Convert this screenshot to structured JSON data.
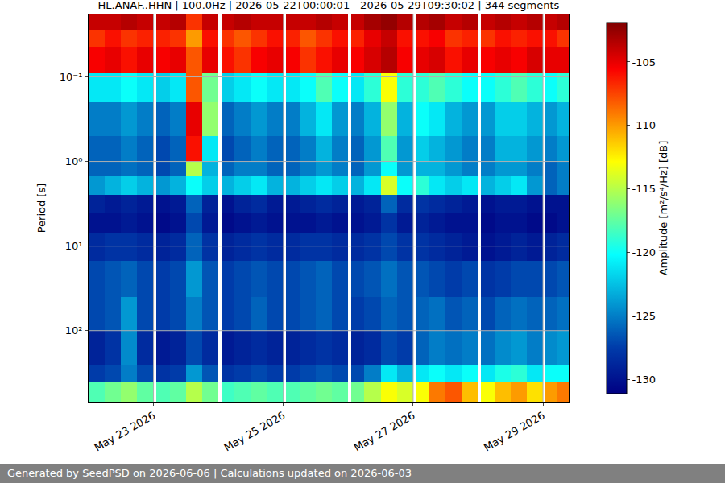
{
  "chart_data": {
    "type": "heatmap",
    "title": "HL.ANAF..HHN | 100.0Hz | 2026-05-22T00:00:01 - 2026-05-29T09:30:02 | 344 segments",
    "ylabel": "Period [s]",
    "footer": "Generated by SeedPSD on 2026-06-06 | Calculations updated on 2026-06-03",
    "log": "y",
    "grid": true,
    "x": [
      "2026-05-22 00:00:01",
      "2026-05-22 06:00",
      "2026-05-22 12:00",
      "2026-05-22 18:00",
      "2026-05-23 00:00",
      "2026-05-23 01:00",
      "2026-05-23 06:00",
      "2026-05-23 12:00",
      "2026-05-23 18:00",
      "2026-05-24 00:00",
      "2026-05-24 01:00",
      "2026-05-24 06:00",
      "2026-05-24 12:00",
      "2026-05-24 18:00",
      "2026-05-25 00:00",
      "2026-05-25 01:00",
      "2026-05-25 06:00",
      "2026-05-25 12:00",
      "2026-05-25 18:00",
      "2026-05-26 00:00",
      "2026-05-26 01:00",
      "2026-05-26 06:00",
      "2026-05-26 12:00",
      "2026-05-26 18:00",
      "2026-05-27 00:00",
      "2026-05-27 01:00",
      "2026-05-27 06:00",
      "2026-05-27 12:00",
      "2026-05-27 18:00",
      "2026-05-28 00:00",
      "2026-05-28 01:00",
      "2026-05-28 06:00",
      "2026-05-28 12:00",
      "2026-05-28 18:00",
      "2026-05-29 00:00",
      "2026-05-29 01:00",
      "2026-05-29 05:00",
      "2026-05-29 09:30:02"
    ],
    "y": [
      0.0183,
      0.028,
      0.045,
      0.09,
      0.2,
      0.5,
      1,
      1.5,
      2.5,
      4,
      7,
      15,
      40,
      100,
      250,
      400,
      692
    ],
    "z": [
      [
        -104,
        -104,
        -103.5,
        -104,
        null,
        -104,
        -103.5,
        -107,
        -104,
        null,
        -104,
        -103.5,
        -104,
        -104,
        null,
        -104,
        -104,
        -103.5,
        -104,
        null,
        -104,
        -103,
        -102.5,
        -103.5,
        null,
        -103.5,
        -103,
        -104,
        -103.5,
        null,
        -104,
        -103.5,
        -104,
        -103.5,
        null,
        -104,
        -103.5
      ],
      [
        -107,
        -106,
        -107,
        -106.5,
        null,
        -106.5,
        -107,
        -110,
        -106,
        null,
        -107,
        -108,
        -107,
        -106,
        null,
        -106.5,
        -108,
        -107,
        -106,
        null,
        -106.5,
        -105,
        -104,
        -106,
        null,
        -106,
        -105.5,
        -107,
        -106.5,
        null,
        -107,
        -106,
        -106.5,
        -106,
        null,
        -106,
        -107
      ],
      [
        -105.5,
        -105,
        -106,
        -105,
        null,
        -105.5,
        -105,
        -108,
        -105,
        null,
        -106,
        -107,
        -105.5,
        -105,
        null,
        -105.5,
        -107,
        -106,
        -105,
        null,
        -105.5,
        -104.5,
        -103.5,
        -105.5,
        null,
        -105,
        -104.5,
        -106,
        -105,
        null,
        -105.5,
        -105,
        -105.5,
        -104.5,
        null,
        -105,
        -105
      ],
      [
        -121,
        -121,
        -120,
        -121,
        null,
        -122,
        -121,
        -108,
        -117,
        null,
        -122,
        -121,
        -120,
        -121,
        null,
        -121,
        -120,
        -118,
        -120,
        null,
        -121,
        -119,
        -113,
        -119,
        null,
        -119,
        -118,
        -119,
        -120,
        null,
        -120,
        -119,
        -118,
        -119,
        null,
        -120,
        -119
      ],
      [
        -125,
        -125,
        -124,
        -125,
        null,
        -126,
        -125,
        -105,
        -116,
        null,
        -126,
        -125,
        -124,
        -125,
        null,
        -125,
        -123,
        -121,
        -124,
        null,
        -125,
        -123,
        -116,
        -123,
        null,
        -120,
        -121,
        -123,
        -124,
        null,
        -124,
        -122,
        -122,
        -123,
        null,
        -124,
        -123
      ],
      [
        -126,
        -126,
        -125,
        -126,
        null,
        -127,
        -126,
        -106,
        -121,
        null,
        -127,
        -126,
        -125,
        -126,
        null,
        -126,
        -125,
        -123,
        -125,
        null,
        -126,
        -124,
        -118,
        -124,
        null,
        -122,
        -123,
        -124,
        -125,
        null,
        -125,
        -123,
        -123,
        -124,
        null,
        -125,
        -124
      ],
      [
        -126,
        -126,
        -125.5,
        -126,
        null,
        -127,
        -126,
        -115,
        -123,
        null,
        -126,
        -125,
        -125,
        -126,
        null,
        -126,
        -125,
        -124,
        -125,
        null,
        -126,
        -124,
        -120,
        -124,
        null,
        -123,
        -123,
        -124,
        -125,
        null,
        -125,
        -124,
        -124,
        -125,
        null,
        -126,
        -125
      ],
      [
        -124,
        -123,
        -122,
        -123,
        null,
        -124,
        -123,
        -120,
        -122,
        null,
        -123,
        -122,
        -121,
        -123,
        null,
        -123,
        -122,
        -121,
        -122,
        null,
        -123,
        -121,
        -114,
        -120,
        null,
        -119,
        -121,
        -122,
        -121,
        null,
        -123,
        -122,
        -121,
        -124,
        null,
        -126,
        -125
      ],
      [
        -129,
        -129.5,
        -129,
        -129.5,
        null,
        -130,
        -129.5,
        -126,
        -129,
        null,
        -130,
        -129,
        -128.5,
        -129.5,
        null,
        -129.5,
        -129,
        -128.5,
        -129,
        null,
        -129.5,
        -129,
        -126,
        -128.5,
        null,
        -128,
        -128.5,
        -129,
        -129.5,
        null,
        -130,
        -129.5,
        -129.5,
        -130,
        null,
        -130,
        -130
      ],
      [
        -130,
        -130,
        -129.5,
        -130,
        null,
        -130.5,
        -130,
        -127,
        -129.5,
        null,
        -130.5,
        -130,
        -129.5,
        -130,
        null,
        -130,
        -130,
        -129.5,
        -130,
        null,
        -130,
        -129.5,
        -128,
        -129.5,
        null,
        -129,
        -129.5,
        -130,
        -130,
        null,
        -130.5,
        -130,
        -130,
        -130.5,
        null,
        -130.5,
        -130
      ],
      [
        -128.5,
        -128,
        -128,
        -128.5,
        null,
        -129,
        -128.5,
        -126,
        -128,
        null,
        -129,
        -128.5,
        -128,
        -128.5,
        null,
        -128.5,
        -128,
        -128,
        -128.5,
        null,
        -128.5,
        -128,
        -127,
        -128,
        null,
        -128,
        -128.5,
        -129,
        -129.5,
        null,
        -130,
        -129.5,
        -129,
        -129.5,
        null,
        -129,
        -128.5
      ],
      [
        -127,
        -126.5,
        -126,
        -127,
        null,
        -127.5,
        -127,
        -124,
        -126.5,
        null,
        -127.5,
        -127,
        -126.5,
        -127,
        null,
        -127,
        -126.5,
        -126,
        -127,
        null,
        -127,
        -126.5,
        -125.5,
        -126.5,
        null,
        -126.5,
        -127,
        -127.5,
        -127,
        null,
        -128,
        -127.5,
        -127,
        -127,
        null,
        -127,
        -126.5
      ],
      [
        -127,
        -126.5,
        -124,
        -127,
        null,
        -127.5,
        -127,
        -125,
        -126.5,
        null,
        -127.5,
        -127,
        -126,
        -127,
        null,
        -127,
        -126.5,
        -126,
        -127,
        null,
        -127.5,
        -127,
        -126,
        -126.5,
        null,
        -126,
        -125.5,
        -126.5,
        -126,
        null,
        -127,
        -126,
        -125.5,
        -126,
        null,
        -126,
        -125.5
      ],
      [
        -129,
        -128,
        -124.5,
        -128.5,
        null,
        -129.5,
        -129,
        -127,
        -128.5,
        null,
        -129.5,
        -129,
        -128.5,
        -129,
        null,
        -129,
        -128.5,
        -128,
        -128.5,
        null,
        -129,
        -128.5,
        -127,
        -127.5,
        null,
        -126,
        -125,
        -125.5,
        -125,
        null,
        -125.5,
        -124.5,
        -124,
        -125,
        null,
        -124.5,
        -124
      ],
      [
        -127.5,
        -127,
        -125,
        -127,
        null,
        -128,
        -127.5,
        -124,
        -126.5,
        null,
        -128,
        -127.5,
        -127,
        -127.5,
        null,
        -127.5,
        -127,
        -126.5,
        -127,
        null,
        -127,
        -125,
        -121,
        -123,
        null,
        -121,
        -120,
        -121,
        -120,
        null,
        -121,
        -119.5,
        -119,
        -121,
        null,
        -120,
        -120
      ],
      [
        -118,
        -117,
        -116,
        -117.5,
        null,
        -118,
        -117.5,
        -115,
        -117,
        null,
        -118.5,
        -118,
        -117.5,
        -118,
        null,
        -118,
        -117.5,
        -117,
        -117.5,
        null,
        -117,
        -115,
        -113,
        -114,
        null,
        -113,
        -109,
        -108,
        -111,
        null,
        -113,
        -111,
        -110,
        -112,
        null,
        -110,
        -109
      ]
    ],
    "xlim": [
      "2026-05-22 00:00:01",
      "2026-05-29 09:30:02"
    ],
    "xticks": [
      {
        "value": "2026-05-23",
        "label": "May 23 2026"
      },
      {
        "value": "2026-05-25",
        "label": "May 25 2026"
      },
      {
        "value": "2026-05-27",
        "label": "May 27 2026"
      },
      {
        "value": "2026-05-29",
        "label": "May 29 2026"
      }
    ],
    "ylim": [
      692,
      0.0183
    ],
    "yticks": [
      {
        "value": 0.1,
        "label": "10⁻¹"
      },
      {
        "value": 1,
        "label": "10⁰"
      },
      {
        "value": 10,
        "label": "10¹"
      },
      {
        "value": 100,
        "label": "10²"
      }
    ],
    "colorbar": {
      "label": "Amplitude [m²/s⁴/Hz] [dB]",
      "zlim": [
        -131.1,
        -101.9
      ],
      "ticks": [
        -130,
        -125,
        -120,
        -115,
        -110,
        -105
      ]
    }
  }
}
